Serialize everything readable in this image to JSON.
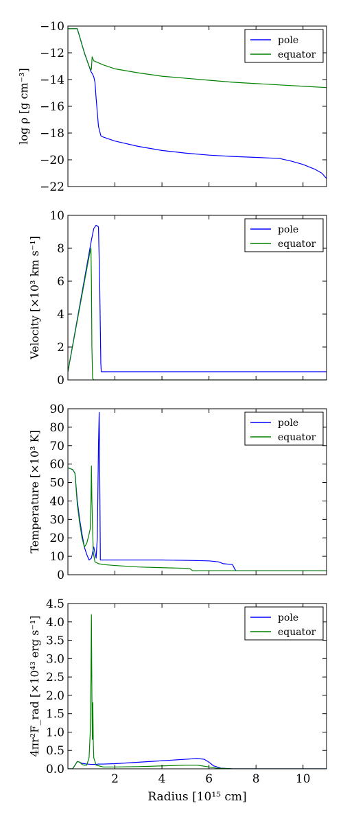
{
  "chart_data": [
    {
      "type": "line",
      "ylabel": "log ρ [g cm⁻³]",
      "xlim": [
        0,
        11
      ],
      "ylim": [
        -22,
        -10
      ],
      "yticks": [
        -10,
        -12,
        -14,
        -16,
        -18,
        -20,
        -22
      ],
      "xticks": [
        2,
        4,
        6,
        8,
        10
      ],
      "show_xticklabels": false,
      "legend": "top-right",
      "series": [
        {
          "name": "pole",
          "color": "#0000ff",
          "x": [
            0,
            0.3,
            0.4,
            0.5,
            0.7,
            0.9,
            0.98,
            1.05,
            1.1,
            1.15,
            1.2,
            1.3,
            1.4,
            1.5,
            2,
            3,
            4,
            5,
            6,
            7,
            8,
            9,
            9.5,
            10,
            10.5,
            10.8,
            11
          ],
          "y": [
            -10.2,
            -10.2,
            -10.2,
            -10.8,
            -12,
            -13,
            -13.4,
            -13.6,
            -13.8,
            -14.2,
            -15.4,
            -17.5,
            -18.2,
            -18.3,
            -18.6,
            -19.0,
            -19.3,
            -19.5,
            -19.65,
            -19.75,
            -19.82,
            -19.9,
            -20.1,
            -20.35,
            -20.7,
            -21.0,
            -21.4
          ]
        },
        {
          "name": "equator",
          "color": "#008000",
          "x": [
            0,
            0.3,
            0.4,
            0.5,
            0.7,
            0.9,
            0.98,
            1.0,
            1.03,
            1.1,
            1.5,
            2,
            3,
            4,
            5,
            6,
            7,
            8,
            9,
            10,
            11
          ],
          "y": [
            -10.2,
            -10.2,
            -10.2,
            -10.8,
            -12,
            -13,
            -13.3,
            -13.2,
            -12.3,
            -12.6,
            -12.9,
            -13.2,
            -13.5,
            -13.75,
            -13.9,
            -14.05,
            -14.2,
            -14.3,
            -14.4,
            -14.5,
            -14.6
          ]
        }
      ]
    },
    {
      "type": "line",
      "ylabel": "Velocity [×10³ km s⁻¹]",
      "xlim": [
        0,
        11
      ],
      "ylim": [
        0,
        10
      ],
      "yticks": [
        0,
        2,
        4,
        6,
        8,
        10
      ],
      "xticks": [
        2,
        4,
        6,
        8,
        10
      ],
      "show_xticklabels": false,
      "legend": "top-right",
      "series": [
        {
          "name": "pole",
          "color": "#0000ff",
          "x": [
            0,
            1.0,
            1.1,
            1.2,
            1.3,
            1.35,
            1.4,
            1.42,
            1.5,
            11
          ],
          "y": [
            0.5,
            8.5,
            9.2,
            9.4,
            9.3,
            6.0,
            1.0,
            0.5,
            0.5,
            0.5
          ]
        },
        {
          "name": "equator",
          "color": "#008000",
          "x": [
            0,
            0.9,
            0.98,
            1.0,
            1.02,
            1.05,
            1.1,
            11
          ],
          "y": [
            0.5,
            7.5,
            8.0,
            6.0,
            2.0,
            0.1,
            0,
            0
          ]
        }
      ]
    },
    {
      "type": "line",
      "ylabel": "Temperature [×10³ K]",
      "xlim": [
        0,
        11
      ],
      "ylim": [
        0,
        90
      ],
      "yticks": [
        0,
        10,
        20,
        30,
        40,
        50,
        60,
        70,
        80,
        90
      ],
      "xticks": [
        2,
        4,
        6,
        8,
        10
      ],
      "show_xticklabels": false,
      "legend": "top-right",
      "series": [
        {
          "name": "pole",
          "color": "#0000ff",
          "x": [
            0,
            0.2,
            0.3,
            0.4,
            0.5,
            0.6,
            0.7,
            0.8,
            0.9,
            1.0,
            1.1,
            1.15,
            1.2,
            1.25,
            1.3,
            1.33,
            1.35,
            1.38,
            1.42,
            1.5,
            2,
            3,
            4,
            5,
            6,
            6.4,
            6.6,
            7,
            7.1,
            7.15,
            8,
            9,
            10,
            11
          ],
          "y": [
            58,
            57,
            55,
            40,
            30,
            22,
            15,
            11,
            8,
            9,
            15,
            12,
            9,
            20,
            70,
            88,
            60,
            8,
            8,
            8,
            8,
            8,
            8,
            7.8,
            7.5,
            7,
            6,
            5.5,
            3,
            2.2,
            2.2,
            2.2,
            2.2,
            2.2
          ]
        },
        {
          "name": "equator",
          "color": "#008000",
          "x": [
            0,
            0.2,
            0.3,
            0.4,
            0.5,
            0.6,
            0.7,
            0.8,
            0.9,
            0.95,
            0.98,
            1.0,
            1.02,
            1.05,
            1.08,
            1.15,
            1.3,
            1.5,
            2,
            3,
            4,
            5,
            5.2,
            5.3,
            6,
            8,
            11
          ],
          "y": [
            58,
            57,
            55,
            38,
            28,
            20,
            15,
            17,
            22,
            25,
            40,
            59,
            40,
            25,
            12,
            7,
            6,
            5.5,
            5,
            4.2,
            3.8,
            3.5,
            3.2,
            2.2,
            2.2,
            2.2,
            2.2
          ]
        }
      ]
    },
    {
      "type": "line",
      "ylabel": "4πr²F_rad [×10⁴³ erg s⁻¹]",
      "xlabel": "Radius [10¹⁵ cm]",
      "xlim": [
        0,
        11
      ],
      "ylim": [
        0,
        4.5
      ],
      "yticks": [
        0.0,
        0.5,
        1.0,
        1.5,
        2.0,
        2.5,
        3.0,
        3.5,
        4.0,
        4.5
      ],
      "xticks": [
        2,
        4,
        6,
        8,
        10
      ],
      "show_xticklabels": true,
      "legend": "top-right",
      "series": [
        {
          "name": "pole",
          "color": "#0000ff",
          "x": [
            0,
            0.2,
            0.3,
            0.4,
            0.5,
            0.6,
            0.7,
            0.8,
            1.0,
            1.2,
            1.3,
            1.5,
            2,
            3,
            4,
            5,
            5.5,
            5.8,
            6,
            6.2,
            6.5,
            7,
            8,
            11
          ],
          "y": [
            0,
            0,
            0.1,
            0.2,
            0.18,
            0.15,
            0.14,
            0.13,
            0.12,
            0.12,
            0.13,
            0.13,
            0.14,
            0.18,
            0.22,
            0.26,
            0.28,
            0.26,
            0.18,
            0.08,
            0.02,
            0,
            0,
            0
          ]
        },
        {
          "name": "equator",
          "color": "#008000",
          "x": [
            0,
            0.2,
            0.3,
            0.4,
            0.5,
            0.6,
            0.7,
            0.8,
            0.9,
            0.95,
            0.98,
            1.0,
            1.02,
            1.04,
            1.06,
            1.08,
            1.1,
            1.2,
            1.5,
            2,
            3,
            4,
            5,
            5.5,
            6,
            6.3,
            7,
            11
          ],
          "y": [
            0,
            0,
            0.1,
            0.2,
            0.18,
            0.12,
            0.1,
            0.1,
            0.3,
            1.0,
            2.5,
            4.2,
            2.0,
            0.8,
            1.8,
            0.7,
            0.3,
            0.1,
            0.05,
            0.05,
            0.06,
            0.08,
            0.1,
            0.1,
            0.05,
            0.02,
            0,
            0
          ]
        }
      ]
    }
  ]
}
